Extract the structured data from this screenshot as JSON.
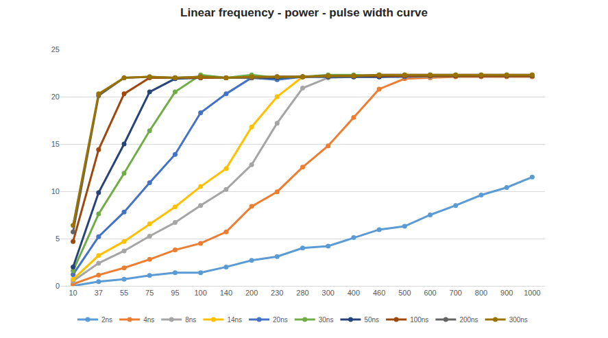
{
  "chart_data": {
    "type": "line",
    "title": "Linear frequency - power - pulse width curve",
    "categories": [
      "10",
      "37",
      "55",
      "75",
      "95",
      "100",
      "140",
      "200",
      "230",
      "280",
      "300",
      "400",
      "460",
      "500",
      "600",
      "700",
      "800",
      "900",
      "1000"
    ],
    "ylim": [
      0,
      25
    ],
    "yticks": [
      0,
      5,
      10,
      15,
      20,
      25
    ],
    "grid": true,
    "legend": "bottom",
    "marker": "circle",
    "series": [
      {
        "name": "2ns",
        "color": "#5B9BD5",
        "values": [
          0,
          0.45,
          0.7,
          1.1,
          1.4,
          1.4,
          2.0,
          2.7,
          3.1,
          4.0,
          4.2,
          5.1,
          5.95,
          6.3,
          7.5,
          8.5,
          9.6,
          10.4,
          11.5
        ]
      },
      {
        "name": "4ns",
        "color": "#ED7D31",
        "values": [
          0.2,
          1.15,
          1.9,
          2.8,
          3.8,
          4.5,
          5.7,
          8.4,
          9.95,
          12.55,
          14.8,
          17.8,
          20.8,
          21.9,
          22.0,
          22.1,
          22.1,
          22.1,
          22.1
        ]
      },
      {
        "name": "8ns",
        "color": "#A5A5A5",
        "values": [
          0.5,
          2.4,
          3.7,
          5.25,
          6.7,
          8.5,
          10.2,
          12.8,
          17.2,
          20.9,
          22.0,
          22.1,
          22.1,
          22.1,
          22.1,
          22.2,
          22.2,
          22.2,
          22.2
        ]
      },
      {
        "name": "14ns",
        "color": "#FFC000",
        "values": [
          0.7,
          3.2,
          4.7,
          6.55,
          8.35,
          10.5,
          12.4,
          16.8,
          20.0,
          22.1,
          22.2,
          22.2,
          22.2,
          22.2,
          22.2,
          22.2,
          22.2,
          22.2,
          22.2
        ]
      },
      {
        "name": "20ns",
        "color": "#4472C4",
        "values": [
          1.2,
          5.2,
          7.8,
          10.9,
          13.9,
          18.3,
          20.3,
          22.0,
          21.8,
          22.1,
          22.1,
          22.1,
          22.1,
          22.1,
          22.2,
          22.2,
          22.2,
          22.2,
          22.2
        ]
      },
      {
        "name": "30ns",
        "color": "#70AD47",
        "values": [
          1.6,
          7.6,
          11.9,
          16.4,
          20.5,
          22.3,
          22.0,
          22.3,
          22.0,
          22.1,
          22.3,
          22.3,
          22.2,
          22.2,
          22.2,
          22.2,
          22.2,
          22.2,
          22.2
        ]
      },
      {
        "name": "50ns",
        "color": "#264478",
        "values": [
          2.0,
          9.85,
          15.0,
          20.5,
          21.9,
          22.0,
          22.0,
          22.0,
          22.0,
          22.1,
          22.1,
          22.1,
          22.1,
          22.2,
          22.2,
          22.2,
          22.2,
          22.2,
          22.2
        ]
      },
      {
        "name": "100ns",
        "color": "#9E480E",
        "values": [
          4.7,
          14.4,
          20.3,
          22.0,
          22.0,
          22.0,
          22.0,
          22.0,
          22.1,
          22.1,
          22.2,
          22.2,
          22.2,
          22.2,
          22.2,
          22.2,
          22.2,
          22.2,
          22.2
        ]
      },
      {
        "name": "200ns",
        "color": "#636363",
        "values": [
          5.7,
          20.1,
          22.0,
          22.1,
          22.0,
          22.1,
          22.0,
          22.0,
          22.1,
          22.1,
          22.2,
          22.2,
          22.3,
          22.3,
          22.3,
          22.3,
          22.3,
          22.3,
          22.3
        ]
      },
      {
        "name": "300ns",
        "color": "#997300",
        "values": [
          6.4,
          20.3,
          22.0,
          22.1,
          22.0,
          22.1,
          22.0,
          22.1,
          22.1,
          22.1,
          22.2,
          22.2,
          22.3,
          22.3,
          22.3,
          22.3,
          22.3,
          22.3,
          22.3
        ]
      }
    ]
  }
}
